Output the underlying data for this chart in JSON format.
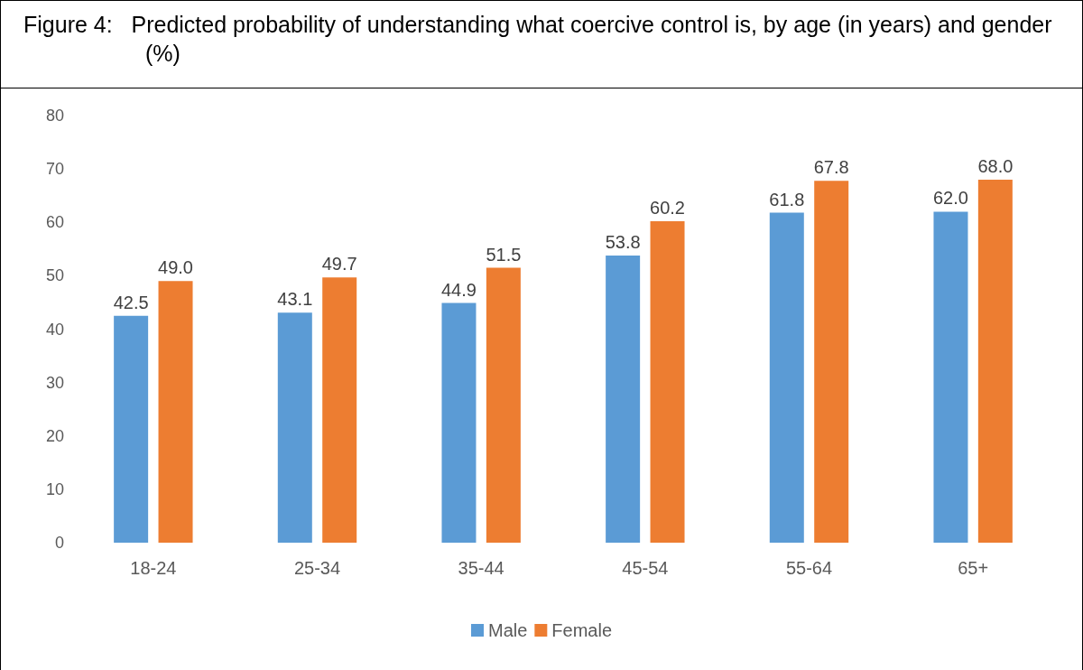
{
  "chart_data": {
    "type": "bar",
    "title": "Figure 4:   Predicted probability of understanding what coercive control is, by age (in years) and gender (%)",
    "categories": [
      "18-24",
      "25-34",
      "35-44",
      "45-54",
      "55-64",
      "65+"
    ],
    "series": [
      {
        "name": "Male",
        "color": "#5b9bd5",
        "values": [
          42.5,
          43.1,
          44.9,
          53.8,
          61.8,
          62.0
        ],
        "value_labels": [
          "42.5",
          "43.1",
          "44.9",
          "53.8",
          "61.8",
          "62.0"
        ]
      },
      {
        "name": "Female",
        "color": "#ed7d31",
        "values": [
          49.0,
          49.7,
          51.5,
          60.2,
          67.8,
          68.0
        ],
        "value_labels": [
          "49.0",
          "49.7",
          "51.5",
          "60.2",
          "67.8",
          "68.0"
        ]
      }
    ],
    "ylim": [
      0,
      80
    ],
    "yticks": [
      0,
      10,
      20,
      30,
      40,
      50,
      60,
      70,
      80
    ],
    "grid": false,
    "legend": "bottom"
  }
}
